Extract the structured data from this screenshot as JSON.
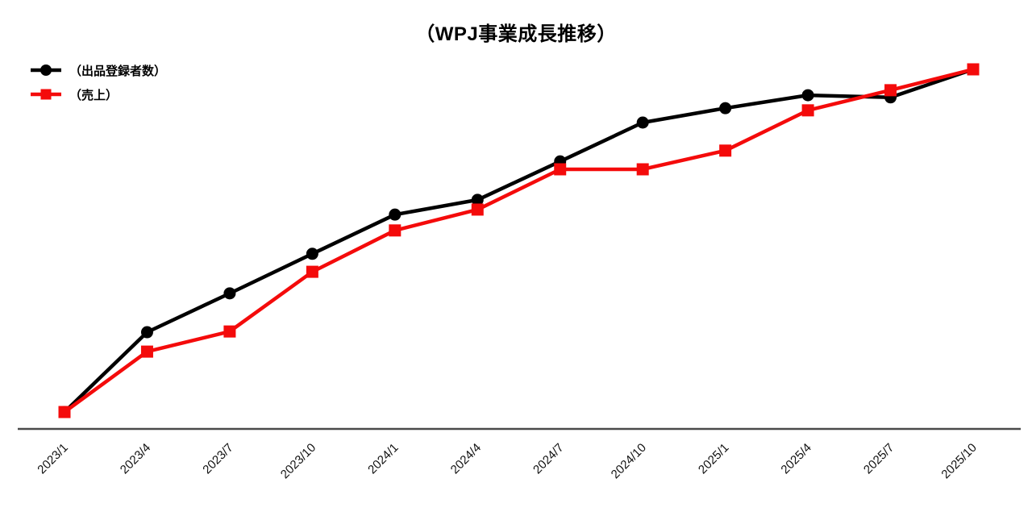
{
  "title": "（WPJ事業成長推移）",
  "legend": {
    "items": [
      {
        "label": "（出品登録者数）",
        "color": "#000000",
        "marker": "circle"
      },
      {
        "label": "（売上）",
        "color": "#f40b0b",
        "marker": "square"
      }
    ]
  },
  "colors": {
    "series_registrants": "#000000",
    "series_sales": "#f40b0b",
    "axis_line": "#4a4a4a",
    "background": "#ffffff",
    "text": "#000000"
  },
  "chart_data": {
    "type": "line",
    "title": "（WPJ事業成長推移）",
    "categories": [
      "2023/1",
      "2023/4",
      "2023/7",
      "2023/10",
      "2024/1",
      "2024/4",
      "2024/7",
      "2024/10",
      "2025/1",
      "2025/4",
      "2025/7",
      "2025/10"
    ],
    "series": [
      {
        "name": "（出品登録者数）",
        "marker": "circle",
        "color": "#000000",
        "values": [
          4.7,
          26.9,
          37.7,
          48.7,
          59.6,
          63.7,
          74.4,
          85.2,
          89.2,
          92.8,
          92.2,
          100
        ]
      },
      {
        "name": "（売上）",
        "marker": "square",
        "color": "#f40b0b",
        "values": [
          4.7,
          21.5,
          27.1,
          43.7,
          55.2,
          61.0,
          72.2,
          72.2,
          77.4,
          88.6,
          94.2,
          100
        ]
      }
    ],
    "xlabel": "",
    "ylabel": "",
    "y_axis_visible": false,
    "value_scale_note": "relative growth index, no y-axis shown",
    "ylim": [
      0,
      105
    ],
    "grid": false,
    "legend_position": "top-left",
    "x_tick_rotation_deg": 45
  }
}
